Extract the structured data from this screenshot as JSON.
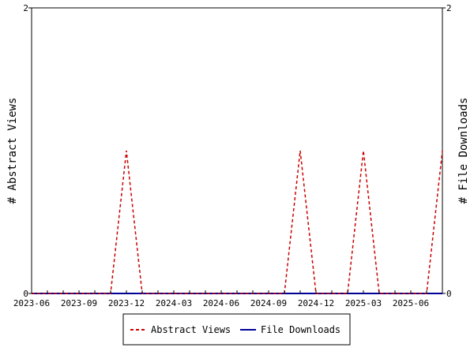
{
  "chart_data": {
    "type": "line",
    "x": [
      "2023-06",
      "2023-07",
      "2023-08",
      "2023-09",
      "2023-10",
      "2023-11",
      "2023-12",
      "2024-01",
      "2024-02",
      "2024-03",
      "2024-04",
      "2024-05",
      "2024-06",
      "2024-07",
      "2024-08",
      "2024-09",
      "2024-10",
      "2024-11",
      "2024-12",
      "2025-01",
      "2025-02",
      "2025-03",
      "2025-04",
      "2025-05",
      "2025-06",
      "2025-07",
      "2025-08"
    ],
    "series": [
      {
        "name": "Abstract Views",
        "color": "#cc0000",
        "style": "dashed",
        "axis": "left",
        "values": [
          0,
          0,
          0,
          0,
          0,
          0,
          1,
          0,
          0,
          0,
          0,
          0,
          0,
          0,
          0,
          0,
          0,
          1,
          0,
          0,
          0,
          1,
          0,
          0,
          0,
          0,
          1
        ]
      },
      {
        "name": "File Downloads",
        "color": "#000099",
        "style": "solid",
        "axis": "right",
        "values": [
          0,
          0,
          0,
          0,
          0,
          0,
          0,
          0,
          0,
          0,
          0,
          0,
          0,
          0,
          0,
          0,
          0,
          0,
          0,
          0,
          0,
          0,
          0,
          0,
          0,
          0,
          0
        ]
      }
    ],
    "x_tick_labels": [
      "2023-06",
      "2023-09",
      "2023-12",
      "2024-03",
      "2024-06",
      "2024-09",
      "2024-12",
      "2025-03",
      "2025-06"
    ],
    "ylabel_left": "# Abstract Views",
    "ylabel_right": "# File Downloads",
    "ylim_left": [
      0,
      2
    ],
    "ylim_right": [
      0,
      2
    ],
    "y_ticks_left": [
      "0",
      "2"
    ],
    "y_ticks_right": [
      "0",
      "2"
    ],
    "grid": false,
    "legend_position": "bottom-center"
  }
}
